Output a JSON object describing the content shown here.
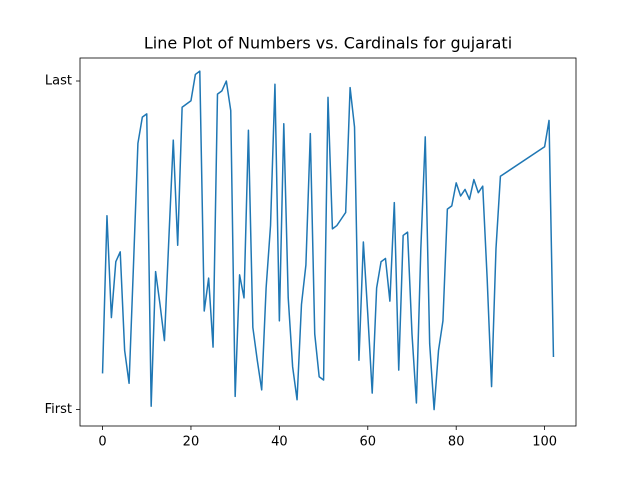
{
  "chart_data": {
    "type": "line",
    "title": "Line Plot of Numbers vs. Cardinals for gujarati",
    "x": [
      0,
      1,
      2,
      3,
      4,
      5,
      6,
      7,
      8,
      9,
      10,
      11,
      12,
      13,
      14,
      15,
      16,
      17,
      18,
      19,
      20,
      21,
      22,
      23,
      24,
      25,
      26,
      27,
      28,
      29,
      30,
      31,
      32,
      33,
      34,
      35,
      36,
      37,
      38,
      39,
      40,
      41,
      42,
      43,
      44,
      45,
      46,
      47,
      48,
      49,
      50,
      51,
      52,
      53,
      54,
      55,
      56,
      57,
      58,
      59,
      60,
      61,
      62,
      63,
      64,
      65,
      66,
      67,
      68,
      69,
      70,
      71,
      72,
      73,
      74,
      75,
      76,
      77,
      78,
      79,
      80,
      81,
      82,
      83,
      84,
      85,
      86,
      87,
      88,
      89,
      90,
      100,
      101,
      102
    ],
    "series": [
      {
        "color": "#1f77b4",
        "values": [
          0.11,
          0.59,
          0.28,
          0.45,
          0.48,
          0.18,
          0.08,
          0.44,
          0.81,
          0.89,
          0.9,
          0.01,
          0.42,
          0.32,
          0.21,
          0.52,
          0.82,
          0.5,
          0.92,
          0.93,
          0.94,
          1.02,
          1.03,
          0.3,
          0.4,
          0.19,
          0.96,
          0.97,
          1.0,
          0.91,
          0.04,
          0.41,
          0.34,
          0.85,
          0.25,
          0.15,
          0.06,
          0.37,
          0.56,
          0.99,
          0.27,
          0.87,
          0.34,
          0.13,
          0.03,
          0.32,
          0.44,
          0.84,
          0.23,
          0.1,
          0.09,
          0.95,
          0.55,
          0.56,
          0.58,
          0.6,
          0.98,
          0.86,
          0.15,
          0.51,
          0.29,
          0.05,
          0.37,
          0.45,
          0.46,
          0.33,
          0.63,
          0.12,
          0.53,
          0.54,
          0.23,
          0.02,
          0.49,
          0.83,
          0.2,
          0.0,
          0.18,
          0.27,
          0.61,
          0.62,
          0.69,
          0.65,
          0.67,
          0.64,
          0.7,
          0.66,
          0.68,
          0.4,
          0.07,
          0.49,
          0.71,
          0.8,
          0.88,
          0.16
        ]
      }
    ],
    "xlim": [
      -5.1,
      107.1
    ],
    "ylim": [
      -0.05,
      1.07
    ],
    "xticks": [
      0,
      20,
      40,
      60,
      80,
      100
    ],
    "yticks": [
      {
        "value": 0,
        "label": "First"
      },
      {
        "value": 1,
        "label": "Last"
      }
    ]
  }
}
